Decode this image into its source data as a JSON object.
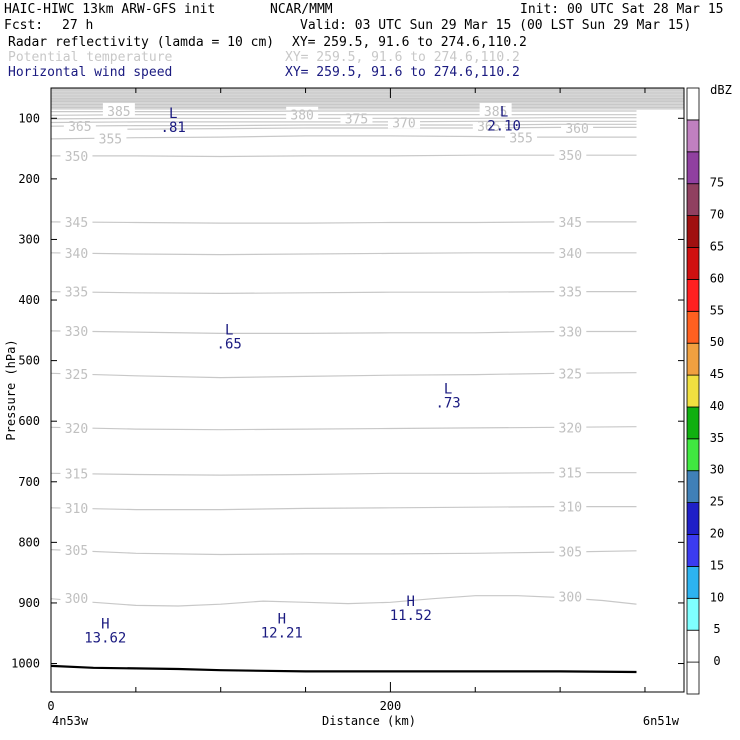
{
  "header": {
    "model": "HAIC-HIWC 13km ARW-GFS init",
    "org": "NCAR/MMM",
    "init": "Init: 00 UTC Sat 28 Mar 15",
    "fcst_label": "Fcst:",
    "fcst_value": "27 h",
    "valid": "Valid: 03 UTC Sun 29 Mar 15 (00 LST Sun 29 Mar 15)",
    "fields": [
      {
        "name": "Radar reflectivity (lamda = 10 cm)",
        "xy": "XY= 259.5, 91.6 to 274.6,110.2",
        "color": "#000000"
      },
      {
        "name": "Potential temperature",
        "xy": "XY= 259.5, 91.6 to 274.6,110.2",
        "color": "#c8c8c8"
      },
      {
        "name": "Horizontal wind speed",
        "xy": "XY= 259.5, 91.6 to 274.6,110.2",
        "color": "#1a1a80"
      }
    ]
  },
  "chart_data": {
    "type": "line",
    "xlabel": "Distance (km)",
    "ylabel": "Pressure (hPa)",
    "xlim": [
      0,
      373
    ],
    "ylim": [
      1047,
      50
    ],
    "x_ticks": [
      {
        "value": 0,
        "label": "0"
      },
      {
        "value": 200,
        "label": "200"
      }
    ],
    "x_minor": [
      50,
      100,
      150,
      250,
      300,
      350
    ],
    "x_end_labels": {
      "left": "4n53w",
      "right": "6n51w"
    },
    "y_ticks": [
      100,
      200,
      300,
      400,
      500,
      600,
      700,
      800,
      900,
      1000
    ],
    "theta_contours": [
      {
        "value": 300,
        "points": [
          [
            0,
            893
          ],
          [
            25,
            899
          ],
          [
            50,
            904
          ],
          [
            75,
            905
          ],
          [
            100,
            902
          ],
          [
            125,
            897
          ],
          [
            150,
            899
          ],
          [
            175,
            901
          ],
          [
            200,
            899
          ],
          [
            225,
            893
          ],
          [
            250,
            888
          ],
          [
            275,
            888
          ],
          [
            300,
            891
          ],
          [
            325,
            896
          ],
          [
            345,
            902
          ]
        ],
        "labels": [
          [
            15,
            892
          ],
          [
            306,
            889
          ]
        ]
      },
      {
        "value": 305,
        "points": [
          [
            0,
            812
          ],
          [
            50,
            818
          ],
          [
            100,
            820
          ],
          [
            150,
            819
          ],
          [
            200,
            819
          ],
          [
            250,
            818
          ],
          [
            300,
            816
          ],
          [
            345,
            814
          ]
        ],
        "labels": [
          [
            15,
            813
          ],
          [
            306,
            815
          ]
        ]
      },
      {
        "value": 310,
        "points": [
          [
            0,
            743
          ],
          [
            50,
            746
          ],
          [
            100,
            746
          ],
          [
            150,
            744
          ],
          [
            200,
            743
          ],
          [
            250,
            742
          ],
          [
            300,
            741
          ],
          [
            345,
            741
          ]
        ],
        "labels": [
          [
            15,
            743
          ],
          [
            306,
            741
          ]
        ]
      },
      {
        "value": 315,
        "points": [
          [
            0,
            686
          ],
          [
            50,
            688
          ],
          [
            100,
            689
          ],
          [
            150,
            688
          ],
          [
            200,
            686
          ],
          [
            250,
            686
          ],
          [
            300,
            685
          ],
          [
            345,
            685
          ]
        ],
        "labels": [
          [
            15,
            686
          ],
          [
            306,
            685
          ]
        ]
      },
      {
        "value": 320,
        "points": [
          [
            0,
            610
          ],
          [
            50,
            613
          ],
          [
            100,
            614
          ],
          [
            150,
            613
          ],
          [
            200,
            612
          ],
          [
            250,
            611
          ],
          [
            300,
            610
          ],
          [
            345,
            609
          ]
        ],
        "labels": [
          [
            15,
            611
          ],
          [
            306,
            610
          ]
        ]
      },
      {
        "value": 325,
        "points": [
          [
            0,
            521
          ],
          [
            50,
            525
          ],
          [
            100,
            528
          ],
          [
            150,
            526
          ],
          [
            200,
            524
          ],
          [
            250,
            523
          ],
          [
            300,
            521
          ],
          [
            345,
            520
          ]
        ],
        "labels": [
          [
            15,
            522
          ],
          [
            306,
            521
          ]
        ]
      },
      {
        "value": 330,
        "points": [
          [
            0,
            451
          ],
          [
            50,
            453
          ],
          [
            100,
            455
          ],
          [
            150,
            455
          ],
          [
            200,
            454
          ],
          [
            250,
            454
          ],
          [
            300,
            452
          ],
          [
            345,
            452
          ]
        ],
        "labels": [
          [
            15,
            451
          ],
          [
            306,
            452
          ]
        ]
      },
      {
        "value": 335,
        "points": [
          [
            0,
            386
          ],
          [
            50,
            388
          ],
          [
            100,
            389
          ],
          [
            150,
            388
          ],
          [
            200,
            387
          ],
          [
            250,
            387
          ],
          [
            300,
            386
          ],
          [
            345,
            386
          ]
        ],
        "labels": [
          [
            15,
            386
          ],
          [
            306,
            386
          ]
        ]
      },
      {
        "value": 340,
        "points": [
          [
            0,
            322
          ],
          [
            50,
            324
          ],
          [
            100,
            325
          ],
          [
            150,
            324
          ],
          [
            200,
            323
          ],
          [
            250,
            322
          ],
          [
            300,
            322
          ],
          [
            345,
            322
          ]
        ],
        "labels": [
          [
            15,
            322
          ],
          [
            306,
            322
          ]
        ]
      },
      {
        "value": 345,
        "points": [
          [
            0,
            271
          ],
          [
            50,
            272
          ],
          [
            100,
            273
          ],
          [
            150,
            273
          ],
          [
            200,
            272
          ],
          [
            250,
            272
          ],
          [
            300,
            271
          ],
          [
            345,
            271
          ]
        ],
        "labels": [
          [
            15,
            271
          ],
          [
            306,
            271
          ]
        ]
      },
      {
        "value": 350,
        "points": [
          [
            0,
            162
          ],
          [
            50,
            162
          ],
          [
            100,
            163
          ],
          [
            150,
            162
          ],
          [
            200,
            162
          ],
          [
            250,
            161
          ],
          [
            300,
            161
          ],
          [
            345,
            161
          ]
        ],
        "labels": [
          [
            15,
            162
          ],
          [
            306,
            161
          ]
        ]
      },
      {
        "value": 355,
        "points": [
          [
            0,
            134
          ],
          [
            25,
            133
          ],
          [
            50,
            132
          ],
          [
            100,
            131
          ],
          [
            150,
            129
          ],
          [
            200,
            129
          ],
          [
            250,
            130
          ],
          [
            275,
            131
          ],
          [
            300,
            131
          ],
          [
            345,
            131
          ]
        ],
        "labels": [
          [
            35,
            133
          ],
          [
            277,
            132
          ]
        ]
      },
      {
        "value": 360,
        "points": [
          [
            45,
            118
          ],
          [
            100,
            117
          ],
          [
            150,
            116
          ],
          [
            200,
            116
          ],
          [
            250,
            116
          ],
          [
            300,
            115
          ],
          [
            345,
            115
          ]
        ],
        "labels": [
          [
            310,
            116
          ]
        ]
      },
      {
        "value": 365,
        "points": [
          [
            0,
            113
          ],
          [
            50,
            112
          ],
          [
            100,
            112
          ],
          [
            150,
            111
          ],
          [
            200,
            111
          ],
          [
            250,
            111
          ],
          [
            300,
            110
          ],
          [
            345,
            110
          ]
        ],
        "labels": [
          [
            17,
            113
          ],
          [
            258,
            113
          ]
        ]
      },
      {
        "value": 370,
        "points": [
          [
            0,
            107
          ],
          [
            50,
            106
          ],
          [
            100,
            106
          ],
          [
            150,
            106
          ],
          [
            200,
            106
          ],
          [
            250,
            105
          ],
          [
            300,
            105
          ],
          [
            345,
            105
          ]
        ],
        "labels": [
          [
            208,
            107
          ]
        ]
      },
      {
        "value": 375,
        "points": [
          [
            0,
            101
          ],
          [
            50,
            100
          ],
          [
            100,
            100
          ],
          [
            150,
            100
          ],
          [
            200,
            100
          ],
          [
            250,
            100
          ],
          [
            300,
            99
          ],
          [
            345,
            99
          ]
        ],
        "labels": [
          [
            180,
            100
          ]
        ]
      },
      {
        "value": 380,
        "points": [
          [
            0,
            95
          ],
          [
            50,
            94
          ],
          [
            100,
            94
          ],
          [
            150,
            94
          ],
          [
            200,
            94
          ],
          [
            250,
            94
          ],
          [
            300,
            94
          ],
          [
            345,
            94
          ]
        ],
        "labels": [
          [
            148,
            94
          ]
        ]
      },
      {
        "value": 385,
        "points": [
          [
            0,
            89
          ],
          [
            50,
            89
          ],
          [
            100,
            89
          ],
          [
            150,
            88
          ],
          [
            200,
            88
          ],
          [
            250,
            88
          ],
          [
            300,
            88
          ],
          [
            345,
            88
          ]
        ],
        "labels": [
          [
            40,
            88
          ],
          [
            262,
            88
          ]
        ]
      }
    ],
    "theta_dense_top": [
      52,
      86
    ],
    "wind_extrema": [
      {
        "type": "L",
        "value": ".81",
        "x": 72,
        "y": 91
      },
      {
        "type": "L",
        "value": "2.10",
        "x": 267,
        "y": 89
      },
      {
        "type": "L",
        "value": ".65",
        "x": 105,
        "y": 449
      },
      {
        "type": "L",
        "value": ".73",
        "x": 234,
        "y": 546
      },
      {
        "type": "H",
        "value": "13.62",
        "x": 32,
        "y": 934
      },
      {
        "type": "H",
        "value": "12.21",
        "x": 136,
        "y": 926
      },
      {
        "type": "H",
        "value": "11.52",
        "x": 212,
        "y": 897
      }
    ],
    "terrain": [
      [
        0,
        1004
      ],
      [
        25,
        1007
      ],
      [
        50,
        1008
      ],
      [
        75,
        1009
      ],
      [
        100,
        1011
      ],
      [
        125,
        1012
      ],
      [
        150,
        1013
      ],
      [
        200,
        1013
      ],
      [
        250,
        1013
      ],
      [
        300,
        1013
      ],
      [
        345,
        1014
      ]
    ]
  },
  "colorbar": {
    "title": "dBZ",
    "levels": [
      {
        "label": "0",
        "color": "#ffffff"
      },
      {
        "label": "5",
        "color": "#ffffff"
      },
      {
        "label": "10",
        "color": "#7fffff"
      },
      {
        "label": "15",
        "color": "#2db3f0"
      },
      {
        "label": "20",
        "color": "#3b3bf0"
      },
      {
        "label": "25",
        "color": "#1f1fc8"
      },
      {
        "label": "30",
        "color": "#4080b8"
      },
      {
        "label": "35",
        "color": "#40e840"
      },
      {
        "label": "40",
        "color": "#10b010"
      },
      {
        "label": "45",
        "color": "#f0e040"
      },
      {
        "label": "50",
        "color": "#f0a040"
      },
      {
        "label": "55",
        "color": "#ff6020"
      },
      {
        "label": "60",
        "color": "#ff2020"
      },
      {
        "label": "65",
        "color": "#d01010"
      },
      {
        "label": "70",
        "color": "#a01010"
      },
      {
        "label": "75",
        "color": "#904060"
      },
      {
        "label": "",
        "color": "#9040a0"
      },
      {
        "label": "",
        "color": "#c080c0"
      },
      {
        "label": "",
        "color": "#ffffff"
      }
    ]
  }
}
